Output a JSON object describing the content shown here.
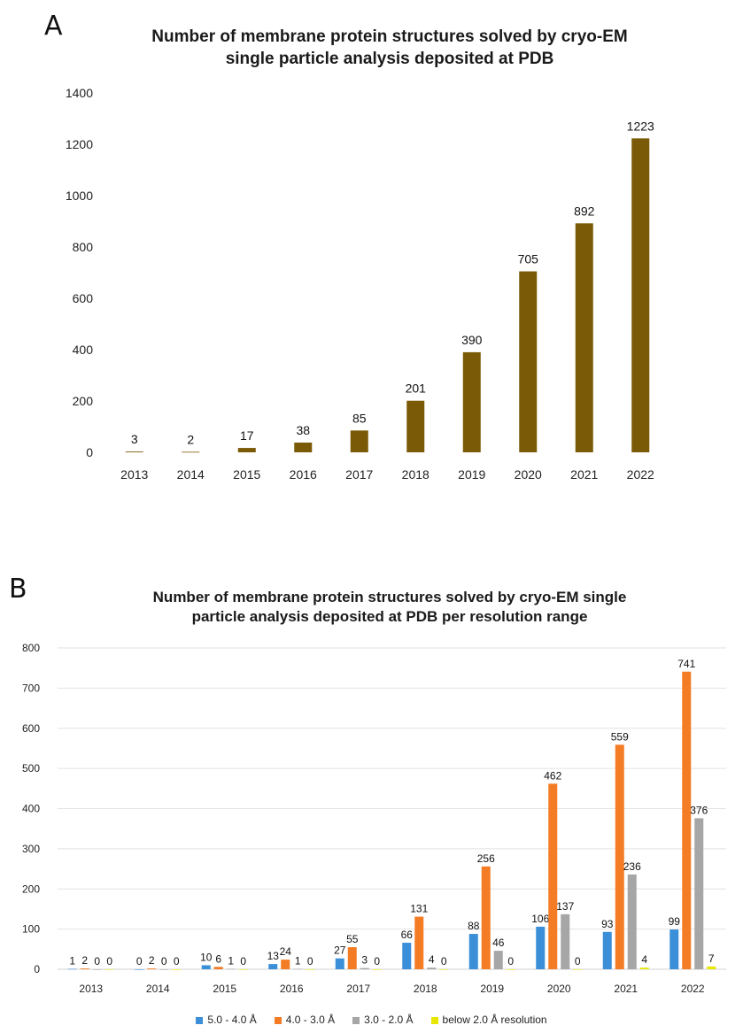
{
  "panel_a": {
    "letter": "A",
    "title_line1": "Number of membrane protein structures solved by cryo-EM",
    "title_line2": "single particle analysis deposited at PDB"
  },
  "panel_b": {
    "letter": "B",
    "title_line1": "Number of membrane protein structures solved by cryo-EM single",
    "title_line2": "particle analysis deposited at PDB per resolution range"
  },
  "chart_data": [
    {
      "type": "bar",
      "title": "Number of membrane protein structures solved by cryo-EM single particle analysis deposited at PDB",
      "categories": [
        "2013",
        "2014",
        "2015",
        "2016",
        "2017",
        "2018",
        "2019",
        "2020",
        "2021",
        "2022"
      ],
      "values": [
        3,
        2,
        17,
        38,
        85,
        201,
        390,
        705,
        892,
        1223
      ],
      "yticks": [
        0,
        200,
        400,
        600,
        800,
        1000,
        1200,
        1400
      ],
      "ylim": [
        0,
        1400
      ],
      "color": "#7a5a06",
      "grid": false,
      "data_labels": true
    },
    {
      "type": "bar",
      "title": "Number of membrane protein structures solved by cryo-EM single particle analysis deposited at PDB per resolution range",
      "categories": [
        "2013",
        "2014",
        "2015",
        "2016",
        "2017",
        "2018",
        "2019",
        "2020",
        "2021",
        "2022"
      ],
      "series": [
        {
          "name": "5.0 - 4.0 Å",
          "color": "#3a8fd8",
          "values": [
            1,
            0,
            10,
            13,
            27,
            66,
            88,
            106,
            93,
            99
          ]
        },
        {
          "name": "4.0 - 3.0 Å",
          "color": "#f47c25",
          "values": [
            2,
            2,
            6,
            24,
            55,
            131,
            256,
            462,
            559,
            741
          ]
        },
        {
          "name": "3.0 - 2.0 Å",
          "color": "#a6a6a6",
          "values": [
            0,
            0,
            1,
            1,
            3,
            4,
            46,
            137,
            236,
            376
          ]
        },
        {
          "name": "below 2.0 Å resolution",
          "color": "#e6e600",
          "values": [
            0,
            0,
            0,
            0,
            0,
            0,
            0,
            0,
            4,
            7
          ]
        }
      ],
      "yticks": [
        0,
        100,
        200,
        300,
        400,
        500,
        600,
        700,
        800
      ],
      "ylim": [
        0,
        800
      ],
      "grid": true,
      "legend": "bottom",
      "data_labels": true
    }
  ]
}
